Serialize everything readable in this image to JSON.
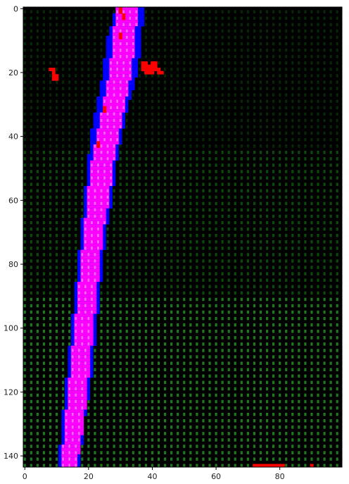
{
  "chart_data": {
    "type": "heatmap",
    "title": "",
    "xlabel": "",
    "ylabel": "",
    "xlim": [
      0,
      99
    ],
    "ylim": [
      143,
      0
    ],
    "xticks": [
      0,
      20,
      40,
      60,
      80
    ],
    "yticks": [
      0,
      20,
      40,
      60,
      80,
      100,
      120,
      140
    ],
    "grid": false,
    "colors": {
      "background": "#000000",
      "dim_dot": "#062806",
      "mid_dot": "#0c4a0c",
      "bright_dot": "#1f7a1f",
      "band_outer": "#0000ff",
      "band_inner": "#ff00ff",
      "band_dot": "#ff66ff",
      "spot": "#ff0000"
    },
    "band": {
      "rows": [
        0,
        10,
        20,
        30,
        40,
        50,
        60,
        70,
        80,
        90,
        100,
        110,
        120,
        130,
        143
      ],
      "outer_left": [
        29,
        26,
        25,
        23,
        21,
        20,
        19,
        18,
        17,
        16,
        15,
        14,
        13,
        12,
        11
      ],
      "outer_right": [
        38,
        37,
        36,
        33,
        31,
        29,
        28,
        26,
        25,
        24,
        23,
        22,
        21,
        19,
        18
      ],
      "inner_left": [
        29,
        28,
        27,
        25,
        23,
        21,
        20,
        19,
        18,
        17,
        16,
        15,
        14,
        13,
        12
      ],
      "inner_right": [
        36,
        35,
        34,
        32,
        30,
        28,
        27,
        25,
        24,
        23,
        22,
        21,
        20,
        19,
        17
      ]
    },
    "spots": [
      {
        "x": 30,
        "y": 0
      },
      {
        "x": 30,
        "y": 1
      },
      {
        "x": 31,
        "y": 2
      },
      {
        "x": 31,
        "y": 3
      },
      {
        "x": 30,
        "y": 8
      },
      {
        "x": 30,
        "y": 9
      },
      {
        "x": 8,
        "y": 19
      },
      {
        "x": 9,
        "y": 19
      },
      {
        "x": 9,
        "y": 20
      },
      {
        "x": 9,
        "y": 21
      },
      {
        "x": 10,
        "y": 21
      },
      {
        "x": 10,
        "y": 22
      },
      {
        "x": 9,
        "y": 22
      },
      {
        "x": 37,
        "y": 17
      },
      {
        "x": 38,
        "y": 17
      },
      {
        "x": 40,
        "y": 17
      },
      {
        "x": 41,
        "y": 17
      },
      {
        "x": 37,
        "y": 18
      },
      {
        "x": 38,
        "y": 18
      },
      {
        "x": 39,
        "y": 18
      },
      {
        "x": 40,
        "y": 18
      },
      {
        "x": 41,
        "y": 18
      },
      {
        "x": 37,
        "y": 19
      },
      {
        "x": 38,
        "y": 19
      },
      {
        "x": 39,
        "y": 19
      },
      {
        "x": 40,
        "y": 19
      },
      {
        "x": 41,
        "y": 19
      },
      {
        "x": 42,
        "y": 19
      },
      {
        "x": 38,
        "y": 20
      },
      {
        "x": 39,
        "y": 20
      },
      {
        "x": 40,
        "y": 20
      },
      {
        "x": 42,
        "y": 20
      },
      {
        "x": 43,
        "y": 20
      },
      {
        "x": 25,
        "y": 31
      },
      {
        "x": 25,
        "y": 32
      },
      {
        "x": 23,
        "y": 42
      },
      {
        "x": 23,
        "y": 43
      },
      {
        "x": 72,
        "y": 143
      },
      {
        "x": 73,
        "y": 143
      },
      {
        "x": 74,
        "y": 143
      },
      {
        "x": 75,
        "y": 143
      },
      {
        "x": 76,
        "y": 143
      },
      {
        "x": 77,
        "y": 143
      },
      {
        "x": 78,
        "y": 143
      },
      {
        "x": 79,
        "y": 143
      },
      {
        "x": 80,
        "y": 143
      },
      {
        "x": 81,
        "y": 143
      },
      {
        "x": 90,
        "y": 143
      }
    ]
  }
}
